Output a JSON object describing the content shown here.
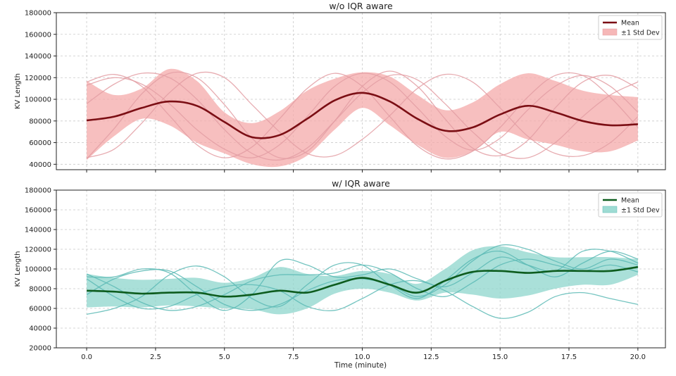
{
  "figure": {
    "xlabel": "Time (minute)"
  },
  "chart_data": [
    {
      "type": "line",
      "title": "w/o IQR aware",
      "xlabel": "",
      "ylabel": "KV Length",
      "xlim": [
        -1.1,
        21.0
      ],
      "ylim": [
        35000,
        180000
      ],
      "yticks": [
        40000,
        60000,
        80000,
        100000,
        120000,
        140000,
        160000,
        180000
      ],
      "ytick_labels": [
        "40000",
        "60000",
        "80000",
        "100000",
        "120000",
        "140000",
        "160000",
        "180000"
      ],
      "xticks": [
        0,
        2.5,
        5,
        7.5,
        10,
        12.5,
        15,
        17.5,
        20
      ],
      "grid": true,
      "legend": {
        "position": "top-right",
        "mean_label": "Mean",
        "band_label": "±1 Std Dev"
      },
      "colors": {
        "mean": "#7b0e14",
        "band": "#f4aaaa",
        "traces": "#e39ea3"
      },
      "x": [
        0,
        1,
        2,
        3,
        4,
        5,
        6,
        7,
        8,
        9,
        10,
        11,
        12,
        13,
        14,
        15,
        16,
        17,
        18,
        19,
        20
      ],
      "series": [
        {
          "name": "Mean",
          "values": [
            80500,
            84000,
            92000,
            98000,
            94000,
            79000,
            65000,
            67000,
            82000,
            99000,
            106000,
            98000,
            82000,
            71000,
            74000,
            86000,
            94000,
            88000,
            80000,
            76000,
            77000
          ]
        },
        {
          "name": "-1 Std Dev",
          "values": [
            44000,
            66000,
            82000,
            76000,
            60000,
            50000,
            40000,
            38000,
            48000,
            72000,
            92000,
            76000,
            58000,
            46000,
            52000,
            70000,
            63000,
            58000,
            52000,
            52000,
            62000
          ]
        },
        {
          "name": "+1 Std Dev",
          "values": [
            117000,
            104000,
            110000,
            128000,
            117000,
            88000,
            78000,
            89000,
            108000,
            119000,
            125000,
            121000,
            104000,
            90000,
            97000,
            114000,
            124000,
            117000,
            108000,
            104000,
            102000
          ]
        }
      ],
      "traces": [
        {
          "name": "run-1",
          "values": [
            113000,
            120000,
            114000,
            96000,
            72000,
            54000,
            46000,
            58000,
            84000,
            112000,
            124000,
            116000,
            92000,
            66000,
            53000,
            64000,
            90000,
            112000,
            122000,
            112000,
            88000
          ]
        },
        {
          "name": "run-2",
          "values": [
            46000,
            54000,
            78000,
            106000,
            124000,
            120000,
            95000,
            70000,
            50000,
            48000,
            63000,
            85000,
            110000,
            123000,
            116000,
            92000,
            66000,
            50000,
            48000,
            60000,
            84000
          ]
        },
        {
          "name": "run-3",
          "values": [
            45000,
            73000,
            105000,
            124000,
            120000,
            95000,
            64000,
            46000,
            52000,
            80000,
            112000,
            126000,
            112000,
            82000,
            55000,
            48000,
            62000,
            92000,
            116000,
            122000,
            110000
          ]
        },
        {
          "name": "run-4",
          "values": [
            116000,
            123000,
            112000,
            85000,
            58000,
            46000,
            56000,
            82000,
            110000,
            124000,
            112000,
            84000,
            57000,
            45000,
            52000,
            74000,
            102000,
            122000,
            122000,
            102000,
            74000
          ]
        },
        {
          "name": "run-5",
          "values": [
            96000,
            114000,
            124000,
            120000,
            100000,
            72000,
            50000,
            44000,
            55000,
            80000,
            106000,
            122000,
            118000,
            96000,
            70000,
            50000,
            46000,
            60000,
            84000,
            104000,
            116000
          ]
        }
      ]
    },
    {
      "type": "line",
      "title": "w/ IQR aware",
      "xlabel": "Time (minute)",
      "ylabel": "KV Length",
      "xlim": [
        -1.1,
        21.0
      ],
      "ylim": [
        20000,
        180000
      ],
      "yticks": [
        20000,
        40000,
        60000,
        80000,
        100000,
        120000,
        140000,
        160000,
        180000
      ],
      "ytick_labels": [
        "20000",
        "40000",
        "60000",
        "80000",
        "100000",
        "120000",
        "140000",
        "160000",
        "180000"
      ],
      "xticks": [
        0,
        2.5,
        5,
        7.5,
        10,
        12.5,
        15,
        17.5,
        20
      ],
      "xtick_labels": [
        "0.0",
        "2.5",
        "5.0",
        "7.5",
        "10.0",
        "12.5",
        "15.0",
        "17.5",
        "20.0"
      ],
      "grid": true,
      "legend": {
        "position": "top-right",
        "mean_label": "Mean",
        "band_label": "±1 Std Dev"
      },
      "colors": {
        "mean": "#0d5c1e",
        "band": "#8dd6cc",
        "traces": "#5cbab5"
      },
      "x": [
        0,
        1,
        2,
        3,
        4,
        5,
        6,
        7,
        8,
        9,
        10,
        11,
        12,
        13,
        14,
        15,
        16,
        17,
        18,
        19,
        20
      ],
      "series": [
        {
          "name": "Mean",
          "values": [
            78000,
            77000,
            75000,
            76000,
            76000,
            72000,
            74000,
            78000,
            76000,
            84000,
            91000,
            84000,
            76000,
            88000,
            97000,
            98000,
            96000,
            98000,
            98000,
            98000,
            102000
          ]
        },
        {
          "name": "-1 Std Dev",
          "values": [
            61000,
            62000,
            61000,
            63000,
            62000,
            60000,
            59000,
            54000,
            60000,
            75000,
            80000,
            76000,
            68000,
            76000,
            74000,
            70000,
            73000,
            80000,
            84000,
            84000,
            94000
          ]
        },
        {
          "name": "+1 Std Dev",
          "values": [
            95000,
            91000,
            89000,
            90000,
            91000,
            86000,
            91000,
            102000,
            95000,
            93000,
            98000,
            95000,
            85000,
            100000,
            119000,
            123000,
            117000,
            112000,
            112000,
            112000,
            110000
          ]
        }
      ],
      "traces": [
        {
          "name": "run-1",
          "values": [
            54000,
            60000,
            72000,
            94000,
            103000,
            92000,
            70000,
            62000,
            84000,
            104000,
            104000,
            84000,
            70000,
            88000,
            110000,
            118000,
            104000,
            92000,
            106000,
            118000,
            110000
          ]
        },
        {
          "name": "run-2",
          "values": [
            95000,
            82000,
            66000,
            58000,
            62000,
            74000,
            88000,
            94000,
            94000,
            96000,
            104000,
            96000,
            80000,
            72000,
            86000,
            104000,
            110000,
            104000,
            98000,
            104000,
            97000
          ]
        },
        {
          "name": "run-3",
          "values": [
            74000,
            90000,
            98000,
            98000,
            82000,
            64000,
            58000,
            64000,
            78000,
            88000,
            90000,
            84000,
            72000,
            84000,
            108000,
            124000,
            120000,
            108000,
            100000,
            110000,
            104000
          ]
        },
        {
          "name": "run-4",
          "values": [
            90000,
            72000,
            60000,
            62000,
            74000,
            82000,
            84000,
            78000,
            62000,
            58000,
            70000,
            84000,
            88000,
            78000,
            62000,
            50000,
            56000,
            72000,
            76000,
            70000,
            64000
          ]
        },
        {
          "name": "run-5",
          "values": [
            92000,
            92000,
            100000,
            96000,
            74000,
            58000,
            74000,
            108000,
            104000,
            92000,
            94000,
            100000,
            90000,
            82000,
            96000,
            112000,
            104000,
            98000,
            118000,
            118000,
            106000
          ]
        }
      ]
    }
  ]
}
